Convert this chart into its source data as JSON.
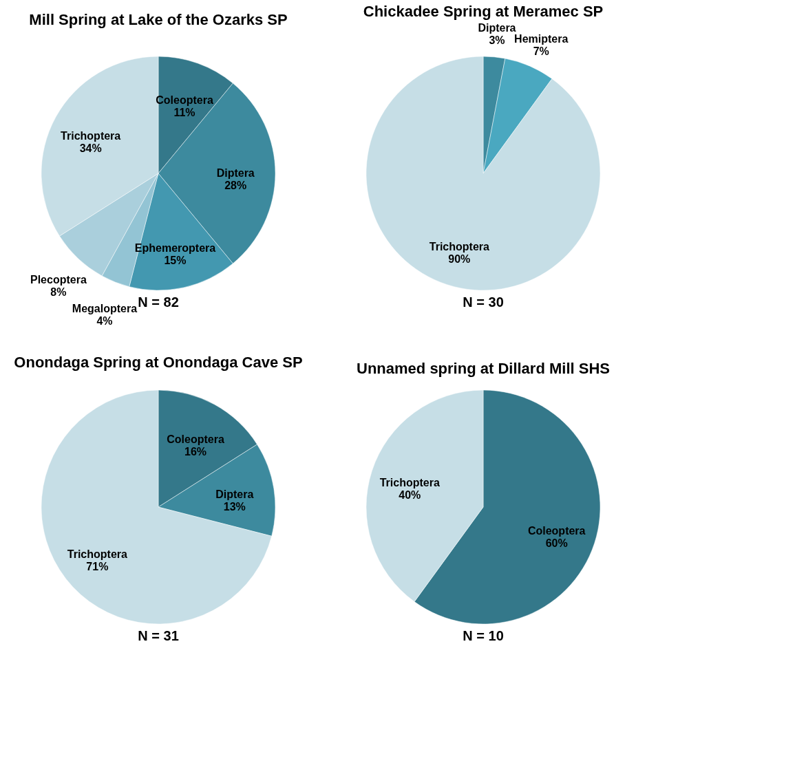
{
  "chart_data": [
    {
      "type": "pie",
      "title": "Mill Spring at Lake of the Ozarks SP",
      "categories": [
        "Coleoptera",
        "Diptera",
        "Ephemeroptera",
        "Megaloptera",
        "Plecoptera",
        "Trichoptera"
      ],
      "values": [
        11,
        28,
        15,
        4,
        8,
        34
      ],
      "value_labels": [
        "11%",
        "28%",
        "15%",
        "4%",
        "8%",
        "34%"
      ],
      "colors": [
        "#34788a",
        "#3d8a9e",
        "#4398b0",
        "#93c4d4",
        "#aacfdc",
        "#c6dee6"
      ],
      "annotations": [
        "N = 82"
      ]
    },
    {
      "type": "pie",
      "title": "Chickadee Spring at Meramec SP",
      "categories": [
        "Diptera",
        "Hemiptera",
        "Trichoptera"
      ],
      "values": [
        3,
        7,
        90
      ],
      "value_labels": [
        "3%",
        "7%",
        "90%"
      ],
      "colors": [
        "#3d8a9e",
        "#4aa8c0",
        "#c6dee6"
      ],
      "annotations": [
        "N = 30"
      ]
    },
    {
      "type": "pie",
      "title": "Onondaga Spring at Onondaga Cave SP",
      "categories": [
        "Coleoptera",
        "Diptera",
        "Trichoptera"
      ],
      "values": [
        16,
        13,
        71
      ],
      "value_labels": [
        "16%",
        "13%",
        "71%"
      ],
      "colors": [
        "#34788a",
        "#3d8a9e",
        "#c6dee6"
      ],
      "annotations": [
        "N = 31"
      ]
    },
    {
      "type": "pie",
      "title": "Unnamed spring at Dillard Mill SHS",
      "categories": [
        "Coleoptera",
        "Trichoptera"
      ],
      "values": [
        60,
        40
      ],
      "value_labels": [
        "60%",
        "40%"
      ],
      "colors": [
        "#34788a",
        "#c6dee6"
      ],
      "annotations": [
        "N = 10"
      ]
    }
  ]
}
